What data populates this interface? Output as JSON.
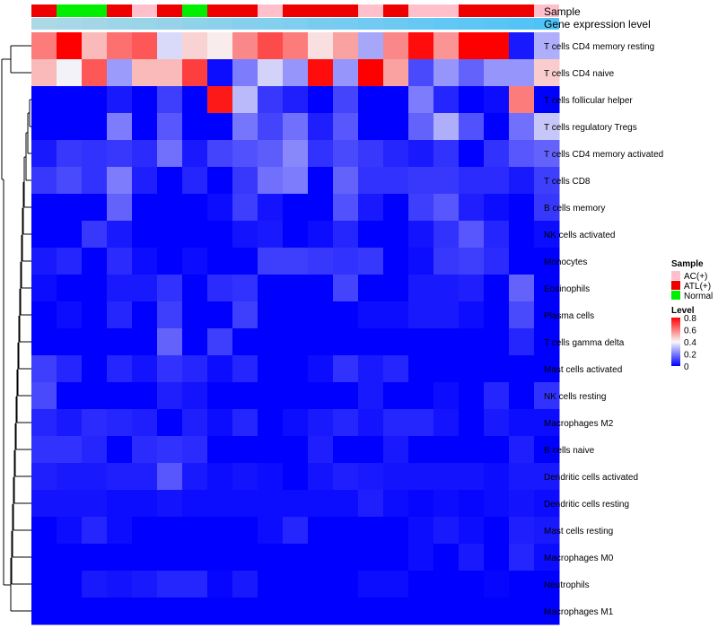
{
  "chart_data": {
    "type": "heatmap",
    "title": "",
    "annotation_tracks": [
      {
        "name": "Sample",
        "label": "Sample"
      },
      {
        "name": "Gene expression level",
        "label": "Gene expression level"
      }
    ],
    "sample_groups": [
      "ATL(+)",
      "Normal",
      "Normal",
      "ATL(+)",
      "AC(+)",
      "ATL(+)",
      "Normal",
      "ATL(+)",
      "ATL(+)",
      "AC(+)",
      "ATL(+)",
      "ATL(+)",
      "ATL(+)",
      "AC(+)",
      "ATL(+)",
      "AC(+)",
      "AC(+)",
      "ATL(+)",
      "ATL(+)",
      "ATL(+)",
      "AC(+)"
    ],
    "gene_expression_level": [
      0.25,
      0.27,
      0.29,
      0.31,
      0.33,
      0.35,
      0.37,
      0.39,
      0.41,
      0.43,
      0.45,
      0.47,
      0.49,
      0.51,
      0.53,
      0.55,
      0.57,
      0.59,
      0.61,
      0.63,
      0.65
    ],
    "rows": [
      "T cells CD4 memory resting",
      "T cells CD4 naive",
      "T cells follicular helper",
      "T cells regulatory  Tregs",
      "T cells CD4 memory activated",
      "T cells CD8",
      "B cells memory",
      "NK cells activated",
      "Monocytes",
      "Eosinophils",
      "Plasma cells",
      "T cells gamma delta",
      "Mast cells activated",
      "NK cells resting",
      "Macrophages M2",
      "B cells naive",
      "Dendritic cells activated",
      "Dendritic cells resting",
      "Mast cells resting",
      "Macrophages M0",
      "Neutrophils",
      "Macrophages M1"
    ],
    "values": [
      [
        0.6,
        0.8,
        0.5,
        0.62,
        0.66,
        0.35,
        0.46,
        0.42,
        0.58,
        0.68,
        0.6,
        0.44,
        0.54,
        0.27,
        0.58,
        0.78,
        0.56,
        0.8,
        0.8,
        0.04,
        0.28
      ],
      [
        0.5,
        0.39,
        0.66,
        0.25,
        0.5,
        0.5,
        0.7,
        0.02,
        0.2,
        0.34,
        0.24,
        0.78,
        0.24,
        0.8,
        0.54,
        0.12,
        0.24,
        0.16,
        0.24,
        0.24,
        0.47
      ],
      [
        0.0,
        0.0,
        0.0,
        0.04,
        0.0,
        0.1,
        0.0,
        0.76,
        0.3,
        0.09,
        0.05,
        0.0,
        0.11,
        0.0,
        0.0,
        0.2,
        0.06,
        0.0,
        0.02,
        0.6,
        0.0
      ],
      [
        0.0,
        0.0,
        0.0,
        0.2,
        0.0,
        0.14,
        0.0,
        0.0,
        0.19,
        0.11,
        0.18,
        0.05,
        0.14,
        0.0,
        0.0,
        0.16,
        0.28,
        0.13,
        0.0,
        0.18,
        0.32
      ],
      [
        0.04,
        0.09,
        0.08,
        0.09,
        0.07,
        0.18,
        0.04,
        0.11,
        0.13,
        0.15,
        0.22,
        0.08,
        0.12,
        0.09,
        0.06,
        0.04,
        0.08,
        0.0,
        0.08,
        0.14,
        0.16
      ],
      [
        0.09,
        0.12,
        0.08,
        0.2,
        0.05,
        0.0,
        0.06,
        0.0,
        0.09,
        0.18,
        0.2,
        0.0,
        0.16,
        0.08,
        0.08,
        0.09,
        0.09,
        0.07,
        0.07,
        0.04,
        0.1
      ],
      [
        0.0,
        0.0,
        0.0,
        0.16,
        0.0,
        0.0,
        0.0,
        0.02,
        0.1,
        0.03,
        0.0,
        0.0,
        0.13,
        0.04,
        0.0,
        0.1,
        0.14,
        0.05,
        0.02,
        0.0,
        0.09
      ],
      [
        0.0,
        0.0,
        0.09,
        0.04,
        0.0,
        0.0,
        0.0,
        0.0,
        0.03,
        0.04,
        0.0,
        0.02,
        0.06,
        0.0,
        0.0,
        0.03,
        0.08,
        0.14,
        0.06,
        0.0,
        0.02
      ],
      [
        0.04,
        0.06,
        0.0,
        0.07,
        0.02,
        0.0,
        0.02,
        0.0,
        0.0,
        0.1,
        0.1,
        0.09,
        0.08,
        0.09,
        0.0,
        0.02,
        0.09,
        0.1,
        0.07,
        0.0,
        0.0
      ],
      [
        0.02,
        0.0,
        0.0,
        0.04,
        0.04,
        0.08,
        0.0,
        0.07,
        0.08,
        0.0,
        0.0,
        0.0,
        0.11,
        0.0,
        0.0,
        0.04,
        0.04,
        0.05,
        0.0,
        0.16,
        0.0
      ],
      [
        0.0,
        0.02,
        0.0,
        0.06,
        0.0,
        0.1,
        0.0,
        0.0,
        0.1,
        0.0,
        0.0,
        0.0,
        0.0,
        0.02,
        0.02,
        0.04,
        0.04,
        0.02,
        0.0,
        0.12,
        0.0
      ],
      [
        0.0,
        0.0,
        0.0,
        0.0,
        0.0,
        0.16,
        0.0,
        0.1,
        0.0,
        0.0,
        0.0,
        0.0,
        0.0,
        0.0,
        0.0,
        0.0,
        0.0,
        0.0,
        0.0,
        0.06,
        0.0
      ],
      [
        0.1,
        0.06,
        0.0,
        0.06,
        0.03,
        0.08,
        0.06,
        0.02,
        0.06,
        0.0,
        0.0,
        0.02,
        0.08,
        0.04,
        0.06,
        0.0,
        0.0,
        0.0,
        0.0,
        0.0,
        0.0
      ],
      [
        0.12,
        0.0,
        0.0,
        0.0,
        0.0,
        0.05,
        0.03,
        0.0,
        0.0,
        0.0,
        0.0,
        0.0,
        0.0,
        0.04,
        0.0,
        0.0,
        0.02,
        0.0,
        0.06,
        0.0,
        0.08
      ],
      [
        0.06,
        0.04,
        0.07,
        0.06,
        0.05,
        0.0,
        0.05,
        0.02,
        0.06,
        0.0,
        0.02,
        0.04,
        0.06,
        0.03,
        0.06,
        0.06,
        0.03,
        0.0,
        0.04,
        0.02,
        0.02
      ],
      [
        0.08,
        0.08,
        0.06,
        0.0,
        0.07,
        0.08,
        0.07,
        0.0,
        0.0,
        0.0,
        0.0,
        0.05,
        0.0,
        0.0,
        0.04,
        0.0,
        0.0,
        0.0,
        0.0,
        0.05,
        0.0
      ],
      [
        0.05,
        0.04,
        0.04,
        0.05,
        0.05,
        0.14,
        0.04,
        0.02,
        0.03,
        0.02,
        0.0,
        0.03,
        0.05,
        0.04,
        0.03,
        0.03,
        0.03,
        0.03,
        0.02,
        0.04,
        0.04
      ],
      [
        0.03,
        0.03,
        0.03,
        0.02,
        0.02,
        0.03,
        0.02,
        0.02,
        0.02,
        0.02,
        0.02,
        0.02,
        0.02,
        0.05,
        0.02,
        0.01,
        0.02,
        0.01,
        0.02,
        0.03,
        0.02
      ],
      [
        0.0,
        0.02,
        0.06,
        0.02,
        0.0,
        0.0,
        0.0,
        0.0,
        0.0,
        0.02,
        0.06,
        0.0,
        0.0,
        0.0,
        0.0,
        0.02,
        0.04,
        0.02,
        0.0,
        0.05,
        0.04
      ],
      [
        0.0,
        0.0,
        0.0,
        0.0,
        0.0,
        0.0,
        0.0,
        0.0,
        0.0,
        0.0,
        0.0,
        0.0,
        0.0,
        0.0,
        0.0,
        0.02,
        0.0,
        0.04,
        0.0,
        0.06,
        0.02
      ],
      [
        0.0,
        0.0,
        0.04,
        0.03,
        0.04,
        0.06,
        0.06,
        0.01,
        0.04,
        0.0,
        0.0,
        0.0,
        0.0,
        0.02,
        0.02,
        0.0,
        0.0,
        0.0,
        0.01,
        0.0,
        0.0
      ],
      [
        0.0,
        0.0,
        0.0,
        0.0,
        0.0,
        0.0,
        0.0,
        0.0,
        0.0,
        0.0,
        0.0,
        0.0,
        0.0,
        0.0,
        0.0,
        0.0,
        0.0,
        0.0,
        0.0,
        0.0,
        0.0
      ]
    ],
    "color_scale": {
      "min": 0,
      "mid": 0.4,
      "max": 0.8,
      "low_color": "#0000FF",
      "mid_color": "#F8F8F8",
      "high_color": "#FF0000"
    },
    "legend_sample": {
      "title": "Sample",
      "entries": [
        {
          "label": "AC(+)",
          "color": "#FFC0CB"
        },
        {
          "label": "ATL(+)",
          "color": "#EE0000"
        },
        {
          "label": "Normal",
          "color": "#00EE00"
        }
      ]
    },
    "legend_level": {
      "title": "Level",
      "ticks": [
        "0.8",
        "0.6",
        "0.4",
        "0.2",
        "0"
      ],
      "tick_values": [
        0.8,
        0.6,
        0.4,
        0.2,
        0
      ]
    },
    "expression_track_colors": {
      "low": "#ADD8E6",
      "high": "#4FC3F7"
    },
    "dendrogram": "row clustering tree"
  }
}
